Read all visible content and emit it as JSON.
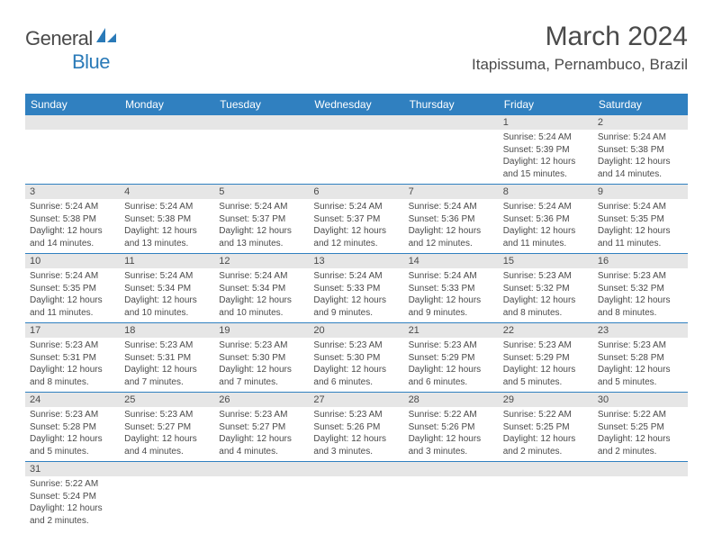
{
  "logo": {
    "part1": "General",
    "part2": "Blue"
  },
  "title": "March 2024",
  "location": "Itapissuma, Pernambuco, Brazil",
  "colors": {
    "header_bg": "#3080c0",
    "header_text": "#ffffff",
    "daynum_bg": "#e6e6e6",
    "text": "#4a4a4a",
    "row_border": "#3080c0",
    "logo_blue": "#2a7ab8"
  },
  "weekdays": [
    "Sunday",
    "Monday",
    "Tuesday",
    "Wednesday",
    "Thursday",
    "Friday",
    "Saturday"
  ],
  "weeks": [
    [
      {
        "day": "",
        "sunrise": "",
        "sunset": "",
        "daylight": ""
      },
      {
        "day": "",
        "sunrise": "",
        "sunset": "",
        "daylight": ""
      },
      {
        "day": "",
        "sunrise": "",
        "sunset": "",
        "daylight": ""
      },
      {
        "day": "",
        "sunrise": "",
        "sunset": "",
        "daylight": ""
      },
      {
        "day": "",
        "sunrise": "",
        "sunset": "",
        "daylight": ""
      },
      {
        "day": "1",
        "sunrise": "Sunrise: 5:24 AM",
        "sunset": "Sunset: 5:39 PM",
        "daylight": "Daylight: 12 hours and 15 minutes."
      },
      {
        "day": "2",
        "sunrise": "Sunrise: 5:24 AM",
        "sunset": "Sunset: 5:38 PM",
        "daylight": "Daylight: 12 hours and 14 minutes."
      }
    ],
    [
      {
        "day": "3",
        "sunrise": "Sunrise: 5:24 AM",
        "sunset": "Sunset: 5:38 PM",
        "daylight": "Daylight: 12 hours and 14 minutes."
      },
      {
        "day": "4",
        "sunrise": "Sunrise: 5:24 AM",
        "sunset": "Sunset: 5:38 PM",
        "daylight": "Daylight: 12 hours and 13 minutes."
      },
      {
        "day": "5",
        "sunrise": "Sunrise: 5:24 AM",
        "sunset": "Sunset: 5:37 PM",
        "daylight": "Daylight: 12 hours and 13 minutes."
      },
      {
        "day": "6",
        "sunrise": "Sunrise: 5:24 AM",
        "sunset": "Sunset: 5:37 PM",
        "daylight": "Daylight: 12 hours and 12 minutes."
      },
      {
        "day": "7",
        "sunrise": "Sunrise: 5:24 AM",
        "sunset": "Sunset: 5:36 PM",
        "daylight": "Daylight: 12 hours and 12 minutes."
      },
      {
        "day": "8",
        "sunrise": "Sunrise: 5:24 AM",
        "sunset": "Sunset: 5:36 PM",
        "daylight": "Daylight: 12 hours and 11 minutes."
      },
      {
        "day": "9",
        "sunrise": "Sunrise: 5:24 AM",
        "sunset": "Sunset: 5:35 PM",
        "daylight": "Daylight: 12 hours and 11 minutes."
      }
    ],
    [
      {
        "day": "10",
        "sunrise": "Sunrise: 5:24 AM",
        "sunset": "Sunset: 5:35 PM",
        "daylight": "Daylight: 12 hours and 11 minutes."
      },
      {
        "day": "11",
        "sunrise": "Sunrise: 5:24 AM",
        "sunset": "Sunset: 5:34 PM",
        "daylight": "Daylight: 12 hours and 10 minutes."
      },
      {
        "day": "12",
        "sunrise": "Sunrise: 5:24 AM",
        "sunset": "Sunset: 5:34 PM",
        "daylight": "Daylight: 12 hours and 10 minutes."
      },
      {
        "day": "13",
        "sunrise": "Sunrise: 5:24 AM",
        "sunset": "Sunset: 5:33 PM",
        "daylight": "Daylight: 12 hours and 9 minutes."
      },
      {
        "day": "14",
        "sunrise": "Sunrise: 5:24 AM",
        "sunset": "Sunset: 5:33 PM",
        "daylight": "Daylight: 12 hours and 9 minutes."
      },
      {
        "day": "15",
        "sunrise": "Sunrise: 5:23 AM",
        "sunset": "Sunset: 5:32 PM",
        "daylight": "Daylight: 12 hours and 8 minutes."
      },
      {
        "day": "16",
        "sunrise": "Sunrise: 5:23 AM",
        "sunset": "Sunset: 5:32 PM",
        "daylight": "Daylight: 12 hours and 8 minutes."
      }
    ],
    [
      {
        "day": "17",
        "sunrise": "Sunrise: 5:23 AM",
        "sunset": "Sunset: 5:31 PM",
        "daylight": "Daylight: 12 hours and 8 minutes."
      },
      {
        "day": "18",
        "sunrise": "Sunrise: 5:23 AM",
        "sunset": "Sunset: 5:31 PM",
        "daylight": "Daylight: 12 hours and 7 minutes."
      },
      {
        "day": "19",
        "sunrise": "Sunrise: 5:23 AM",
        "sunset": "Sunset: 5:30 PM",
        "daylight": "Daylight: 12 hours and 7 minutes."
      },
      {
        "day": "20",
        "sunrise": "Sunrise: 5:23 AM",
        "sunset": "Sunset: 5:30 PM",
        "daylight": "Daylight: 12 hours and 6 minutes."
      },
      {
        "day": "21",
        "sunrise": "Sunrise: 5:23 AM",
        "sunset": "Sunset: 5:29 PM",
        "daylight": "Daylight: 12 hours and 6 minutes."
      },
      {
        "day": "22",
        "sunrise": "Sunrise: 5:23 AM",
        "sunset": "Sunset: 5:29 PM",
        "daylight": "Daylight: 12 hours and 5 minutes."
      },
      {
        "day": "23",
        "sunrise": "Sunrise: 5:23 AM",
        "sunset": "Sunset: 5:28 PM",
        "daylight": "Daylight: 12 hours and 5 minutes."
      }
    ],
    [
      {
        "day": "24",
        "sunrise": "Sunrise: 5:23 AM",
        "sunset": "Sunset: 5:28 PM",
        "daylight": "Daylight: 12 hours and 5 minutes."
      },
      {
        "day": "25",
        "sunrise": "Sunrise: 5:23 AM",
        "sunset": "Sunset: 5:27 PM",
        "daylight": "Daylight: 12 hours and 4 minutes."
      },
      {
        "day": "26",
        "sunrise": "Sunrise: 5:23 AM",
        "sunset": "Sunset: 5:27 PM",
        "daylight": "Daylight: 12 hours and 4 minutes."
      },
      {
        "day": "27",
        "sunrise": "Sunrise: 5:23 AM",
        "sunset": "Sunset: 5:26 PM",
        "daylight": "Daylight: 12 hours and 3 minutes."
      },
      {
        "day": "28",
        "sunrise": "Sunrise: 5:22 AM",
        "sunset": "Sunset: 5:26 PM",
        "daylight": "Daylight: 12 hours and 3 minutes."
      },
      {
        "day": "29",
        "sunrise": "Sunrise: 5:22 AM",
        "sunset": "Sunset: 5:25 PM",
        "daylight": "Daylight: 12 hours and 2 minutes."
      },
      {
        "day": "30",
        "sunrise": "Sunrise: 5:22 AM",
        "sunset": "Sunset: 5:25 PM",
        "daylight": "Daylight: 12 hours and 2 minutes."
      }
    ],
    [
      {
        "day": "31",
        "sunrise": "Sunrise: 5:22 AM",
        "sunset": "Sunset: 5:24 PM",
        "daylight": "Daylight: 12 hours and 2 minutes."
      },
      {
        "day": "",
        "sunrise": "",
        "sunset": "",
        "daylight": ""
      },
      {
        "day": "",
        "sunrise": "",
        "sunset": "",
        "daylight": ""
      },
      {
        "day": "",
        "sunrise": "",
        "sunset": "",
        "daylight": ""
      },
      {
        "day": "",
        "sunrise": "",
        "sunset": "",
        "daylight": ""
      },
      {
        "day": "",
        "sunrise": "",
        "sunset": "",
        "daylight": ""
      },
      {
        "day": "",
        "sunrise": "",
        "sunset": "",
        "daylight": ""
      }
    ]
  ]
}
